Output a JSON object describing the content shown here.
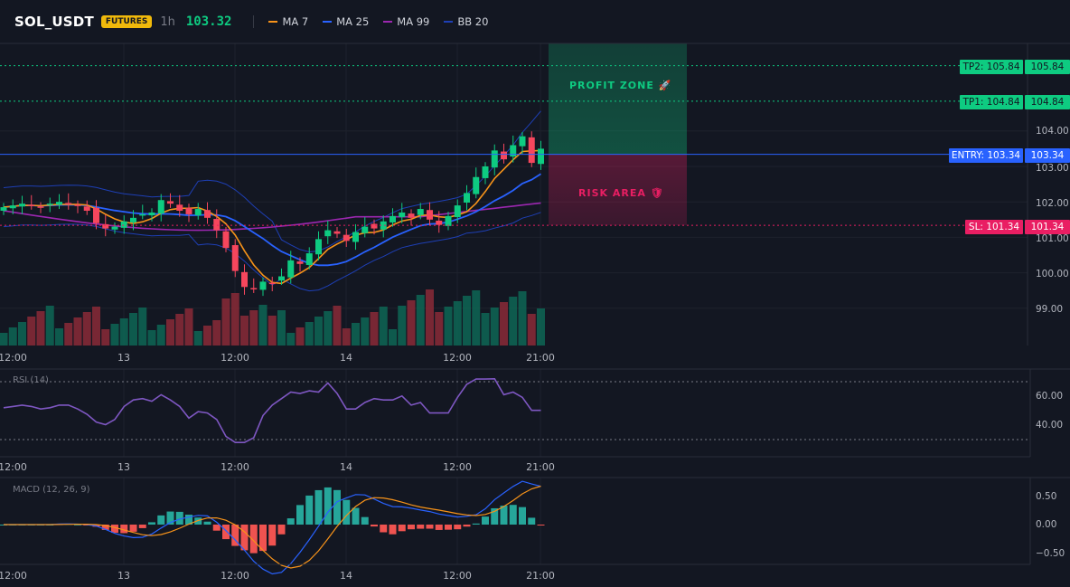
{
  "header": {
    "symbol": "SOL_USDT",
    "badge": "FUTURES",
    "timeframe": "1h",
    "last_price": "103.32",
    "legend": [
      {
        "label": "MA 7",
        "color": "#f7931a"
      },
      {
        "label": "MA 25",
        "color": "#2962ff"
      },
      {
        "label": "MA 99",
        "color": "#9c27b0"
      },
      {
        "label": "BB 20",
        "color": "#1e3fb5"
      }
    ]
  },
  "colors": {
    "up": "#0ecb81",
    "down": "#f6465d",
    "entry": "#2962ff",
    "tp": "#0ecb81",
    "sl": "#e91e63",
    "rsi": "#7e57c2",
    "macd": "#2962ff",
    "signal": "#f7931a"
  },
  "price_axis": {
    "ticks": [
      "104.00",
      "103.00",
      "102.00",
      "101.00",
      "100.00",
      "99.00"
    ]
  },
  "time_axis": {
    "ticks": [
      "12:00",
      "13",
      "12:00",
      "14",
      "12:00",
      "21:00"
    ]
  },
  "levels": {
    "tp2": {
      "label": "TP2: 105.84",
      "value": "105.84",
      "price": 105.84
    },
    "tp1": {
      "label": "TP1: 104.84",
      "value": "104.84",
      "price": 104.84
    },
    "entry": {
      "label": "ENTRY: 103.34",
      "value": "103.34",
      "price": 103.34
    },
    "sl": {
      "label": "SL: 101.34",
      "value": "101.34",
      "price": 101.34
    }
  },
  "zones": {
    "profit": "PROFIT ZONE 🚀",
    "risk": "RISK AREA 🛡"
  },
  "rsi": {
    "label": "RSI (14)",
    "ticks": [
      "60.00",
      "40.00"
    ]
  },
  "macd": {
    "label": "MACD (12, 26, 9)",
    "ticks": [
      "0.50",
      "0.00",
      "−0.50"
    ]
  }
}
